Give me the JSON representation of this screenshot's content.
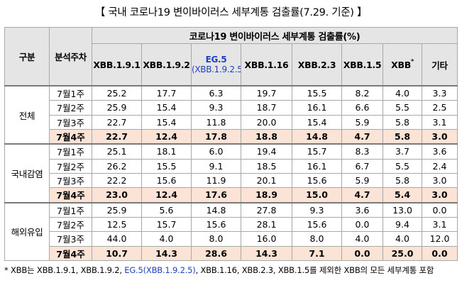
{
  "title": "【 국내 코로나19 변이바이러스 세부계통 검출률(7.29. 기준) 】",
  "header": {
    "category": "구분",
    "analysis_week": "분석주차",
    "group_title": "코로나19 변이바이러스 세부계통 검출률(%)",
    "columns": [
      {
        "name": "XBB.1.9.1"
      },
      {
        "name": "XBB.1.9.2"
      },
      {
        "name": "EG.5",
        "sub": "(XBB.1.9.2.5)"
      },
      {
        "name": "XBB.1.16"
      },
      {
        "name": "XBB.2.3"
      },
      {
        "name": "XBB.1.5"
      },
      {
        "name": "XBB",
        "mark": "*"
      },
      {
        "name": "기타"
      }
    ]
  },
  "sections": [
    {
      "label": "전체",
      "rows": [
        {
          "week": "7월1주",
          "values": [
            "25.2",
            "17.7",
            "6.3",
            "19.7",
            "15.5",
            "8.2",
            "4.0",
            "3.3"
          ]
        },
        {
          "week": "7월2주",
          "values": [
            "25.9",
            "15.4",
            "9.3",
            "18.7",
            "16.1",
            "6.6",
            "5.5",
            "2.5"
          ]
        },
        {
          "week": "7월3주",
          "values": [
            "22.7",
            "15.4",
            "11.8",
            "20.0",
            "15.4",
            "5.9",
            "5.8",
            "3.1"
          ]
        },
        {
          "week": "7월4주",
          "values": [
            "22.7",
            "12.4",
            "17.8",
            "18.8",
            "14.8",
            "4.7",
            "5.8",
            "3.0"
          ]
        }
      ]
    },
    {
      "label": "국내감염",
      "rows": [
        {
          "week": "7월1주",
          "values": [
            "25.1",
            "18.1",
            "6.0",
            "19.4",
            "15.7",
            "8.3",
            "3.7",
            "3.6"
          ]
        },
        {
          "week": "7월2주",
          "values": [
            "26.2",
            "15.5",
            "9.1",
            "18.5",
            "16.1",
            "6.7",
            "5.5",
            "2.4"
          ]
        },
        {
          "week": "7월3주",
          "values": [
            "22.2",
            "15.6",
            "11.9",
            "20.1",
            "15.6",
            "5.9",
            "5.8",
            "3.0"
          ]
        },
        {
          "week": "7월4주",
          "values": [
            "23.0",
            "12.4",
            "17.6",
            "18.9",
            "15.0",
            "4.7",
            "5.4",
            "3.0"
          ]
        }
      ]
    },
    {
      "label": "해외유입",
      "rows": [
        {
          "week": "7월1주",
          "values": [
            "25.9",
            "5.6",
            "14.8",
            "27.8",
            "9.3",
            "3.6",
            "13.0",
            "0.0"
          ]
        },
        {
          "week": "7월2주",
          "values": [
            "12.5",
            "15.7",
            "15.6",
            "28.1",
            "15.6",
            "0.0",
            "9.4",
            "3.1"
          ]
        },
        {
          "week": "7월3주",
          "values": [
            "44.0",
            "4.0",
            "8.0",
            "16.0",
            "8.0",
            "4.0",
            "4.0",
            "12.0"
          ]
        },
        {
          "week": "7월4주",
          "values": [
            "10.7",
            "14.3",
            "28.6",
            "14.3",
            "7.1",
            "0.0",
            "25.0",
            "0.0"
          ]
        }
      ]
    }
  ],
  "footnote": {
    "prefix": "* XBB는 XBB.1.9.1, XBB.1.9.2, ",
    "highlight": "EG.5(XBB.1.9.2.5)",
    "suffix": ", XBB.1.16, XBB.2.3, XBB.1.5를 제외한 XBB의 모든 세부계통 포함"
  },
  "colors": {
    "header_bg": "#e5e5e5",
    "highlight_row_bg": "#fbe3d6",
    "eg5_text": "#1f3fbf",
    "border": "#a8a8a8"
  }
}
